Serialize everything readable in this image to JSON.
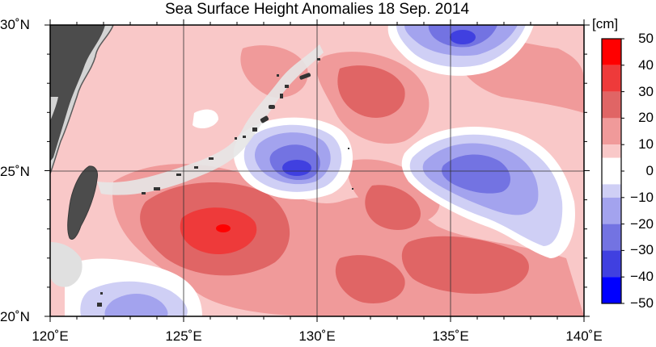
{
  "title": "Sea Surface Height Anomalies  18 Sep. 2014",
  "map": {
    "extent": {
      "lon": [
        120,
        140
      ],
      "lat": [
        20,
        30
      ]
    },
    "lon_labels": [
      "120˚E",
      "125˚E",
      "130˚E",
      "135˚E",
      "140˚E"
    ],
    "lat_labels": [
      "30˚N",
      "25˚N",
      "20˚N"
    ],
    "grid": true,
    "land_color": "#d4d4d4",
    "coast_color": "#5a5a5a"
  },
  "colorbar": {
    "unit": "[cm]",
    "ticks": [
      "50",
      "40",
      "30",
      "20",
      "10",
      "0",
      "−10",
      "−20",
      "−30",
      "−40",
      "−50"
    ],
    "levels": [
      {
        "range": [
          40,
          50
        ],
        "color": "#ff0000"
      },
      {
        "range": [
          30,
          40
        ],
        "color": "#ee3a3a"
      },
      {
        "range": [
          20,
          30
        ],
        "color": "#e06565"
      },
      {
        "range": [
          10,
          20
        ],
        "color": "#f09a9a"
      },
      {
        "range": [
          5,
          10
        ],
        "color": "#f9c8c8"
      },
      {
        "range": [
          -5,
          5
        ],
        "color": "#ffffff"
      },
      {
        "range": [
          -10,
          -5
        ],
        "color": "#cfcff5"
      },
      {
        "range": [
          -20,
          -10
        ],
        "color": "#a3a3ee"
      },
      {
        "range": [
          -30,
          -20
        ],
        "color": "#7373e2"
      },
      {
        "range": [
          -40,
          -30
        ],
        "color": "#4040e0"
      },
      {
        "range": [
          -50,
          -40
        ],
        "color": "#0000ff"
      }
    ]
  }
}
